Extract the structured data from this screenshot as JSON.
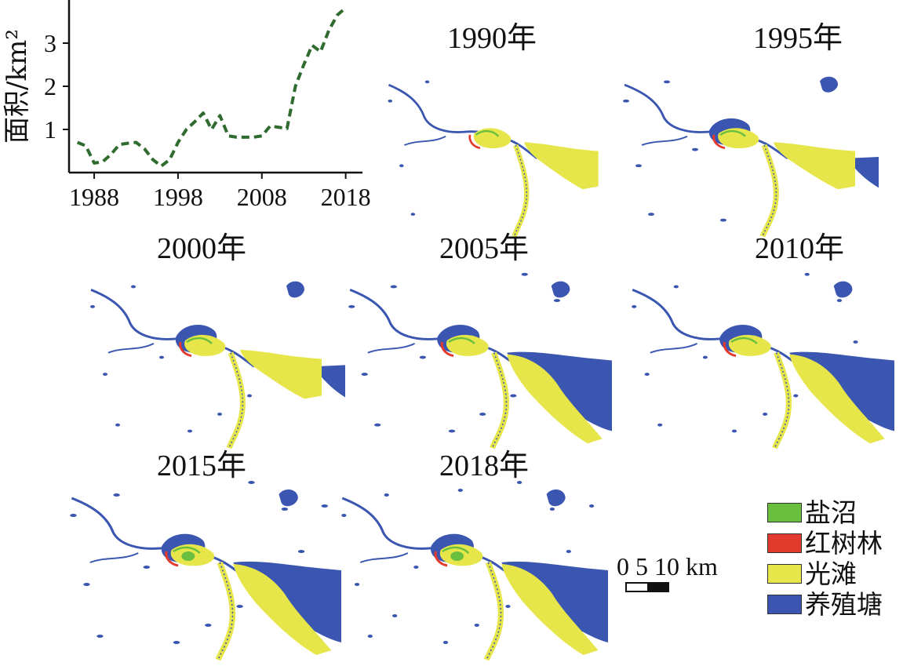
{
  "chart_data": {
    "type": "line",
    "ylabel": "面积/km²",
    "x_ticks": [
      1988,
      1998,
      2008,
      2018
    ],
    "y_ticks": [
      1,
      2,
      3
    ],
    "xlim": [
      1985,
      2020
    ],
    "ylim": [
      0,
      4
    ],
    "line_style": "dashed",
    "color": "#2f6b2f",
    "series": [
      {
        "x": [
          1986,
          1987,
          1988,
          1989,
          1990,
          1991,
          1992,
          1993,
          1994,
          1995,
          1996,
          1997,
          1998,
          1999,
          2000,
          2001,
          2002,
          2003,
          2004,
          2005,
          2006,
          2007,
          2008,
          2009,
          2010,
          2011,
          2012,
          2013,
          2014,
          2015,
          2016,
          2017,
          2018
        ],
        "values": [
          0.7,
          0.62,
          0.22,
          0.25,
          0.42,
          0.65,
          0.68,
          0.7,
          0.55,
          0.3,
          0.15,
          0.3,
          0.7,
          1.0,
          1.18,
          1.38,
          1.0,
          1.32,
          0.85,
          0.82,
          0.82,
          0.82,
          0.85,
          1.08,
          1.05,
          1.02,
          2.0,
          2.5,
          2.95,
          2.8,
          3.3,
          3.65,
          3.82
        ]
      }
    ]
  },
  "maps": [
    {
      "title": "1990年",
      "stage": 0
    },
    {
      "title": "1995年",
      "stage": 1
    },
    {
      "title": "2000年",
      "stage": 2
    },
    {
      "title": "2005年",
      "stage": 3
    },
    {
      "title": "2010年",
      "stage": 4
    },
    {
      "title": "2015年",
      "stage": 5
    },
    {
      "title": "2018年",
      "stage": 6
    }
  ],
  "legend": [
    {
      "label": "盐沼",
      "color": "#6abf3f"
    },
    {
      "label": "红树林",
      "color": "#e23b2e"
    },
    {
      "label": "光滩",
      "color": "#e6e64a"
    },
    {
      "label": "养殖塘",
      "color": "#3a56b0"
    }
  ],
  "scale_bar": {
    "label": "0 5 10 km"
  },
  "colors": {
    "water_channel": "#3a56b0",
    "tidal_flat": "#e6e64a",
    "salt_marsh": "#6abf3f",
    "mangrove": "#e23b2e",
    "pond": "#3a56b0"
  }
}
